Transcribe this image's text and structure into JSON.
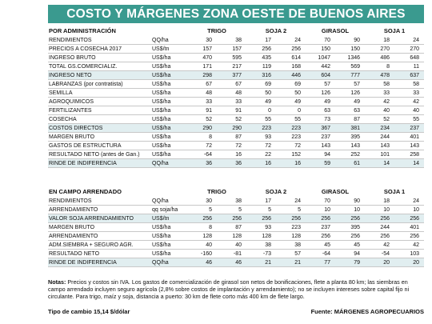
{
  "title": "COSTO Y MÁRGENES ZONA OESTE DE BUENOS AIRES",
  "section1": {
    "heading": "POR ADMINISTRACIÓN",
    "groups": [
      "TRIGO",
      "SOJA 2",
      "GIRASOL",
      "SOJA 1"
    ],
    "rows": [
      {
        "label": "RENDIMIENTOS",
        "unit": "QQ/ha",
        "values": [
          "30",
          "38",
          "17",
          "24",
          "70",
          "90",
          "18",
          "24"
        ]
      },
      {
        "label": "PRECIOS A COSECHA 2017",
        "unit": "US$/tn",
        "values": [
          "157",
          "157",
          "256",
          "256",
          "150",
          "150",
          "270",
          "270"
        ]
      },
      {
        "label": "INGRESO BRUTO",
        "unit": "US$/ha",
        "values": [
          "470",
          "595",
          "435",
          "614",
          "1047",
          "1346",
          "486",
          "648"
        ]
      },
      {
        "label": "TOTAL GS.COMERCIALIZ.",
        "unit": "US$/ha",
        "values": [
          "171",
          "217",
          "119",
          "168",
          "442",
          "569",
          "8",
          "11"
        ]
      },
      {
        "label": "INGRESO NETO",
        "unit": "US$/ha",
        "values": [
          "298",
          "377",
          "316",
          "446",
          "604",
          "777",
          "478",
          "637"
        ]
      },
      {
        "label": "LABRANZAS (por contratista)",
        "unit": "US$/ha",
        "values": [
          "67",
          "67",
          "69",
          "69",
          "57",
          "57",
          "58",
          "58"
        ]
      },
      {
        "label": "SEMILLA",
        "unit": "US$/ha",
        "values": [
          "48",
          "48",
          "50",
          "50",
          "126",
          "126",
          "33",
          "33"
        ]
      },
      {
        "label": "AGROQUIMICOS",
        "unit": "US$/ha",
        "values": [
          "33",
          "33",
          "49",
          "49",
          "49",
          "49",
          "42",
          "42"
        ]
      },
      {
        "label": "FERTILIZANTES",
        "unit": "US$/ha",
        "values": [
          "91",
          "91",
          "0",
          "0",
          "63",
          "63",
          "40",
          "40"
        ]
      },
      {
        "label": "COSECHA",
        "unit": "US$/ha",
        "values": [
          "52",
          "52",
          "55",
          "55",
          "73",
          "87",
          "52",
          "55"
        ]
      },
      {
        "label": "COSTOS DIRECTOS",
        "unit": "US$/ha",
        "values": [
          "290",
          "290",
          "223",
          "223",
          "367",
          "381",
          "234",
          "237"
        ]
      },
      {
        "label": "MARGEN BRUTO",
        "unit": "US$/ha",
        "values": [
          "8",
          "87",
          "93",
          "223",
          "237",
          "395",
          "244",
          "401"
        ]
      },
      {
        "label": "GASTOS DE ESTRUCTURA",
        "unit": "US$/ha",
        "values": [
          "72",
          "72",
          "72",
          "72",
          "143",
          "143",
          "143",
          "143"
        ]
      },
      {
        "label": "RESULTADO NETO (antes de Gan.)",
        "unit": "US$/ha",
        "values": [
          "-64",
          "16",
          "22",
          "152",
          "94",
          "252",
          "101",
          "258"
        ]
      },
      {
        "label": "RINDE DE INDIFERENCIA",
        "unit": "QQ/ha",
        "values": [
          "36",
          "36",
          "16",
          "16",
          "59",
          "61",
          "14",
          "14"
        ]
      }
    ]
  },
  "section2": {
    "heading": "EN CAMPO ARRENDADO",
    "groups": [
      "TRIGO",
      "SOJA 2",
      "GIRASOL",
      "SOJA 1"
    ],
    "rows": [
      {
        "label": "RENDIMIENTOS",
        "unit": "QQ/ha",
        "values": [
          "30",
          "38",
          "17",
          "24",
          "70",
          "90",
          "18",
          "24"
        ]
      },
      {
        "label": "ARRENDAMIENTO",
        "unit": "qq soja/ha",
        "values": [
          "5",
          "5",
          "5",
          "5",
          "10",
          "10",
          "10",
          "10"
        ]
      },
      {
        "label": "VALOR SOJA ARRENDAMIENTO",
        "unit": "US$/tn",
        "values": [
          "256",
          "256",
          "256",
          "256",
          "256",
          "256",
          "256",
          "256"
        ]
      },
      {
        "label": "MARGEN BRUTO",
        "unit": "US$/ha",
        "values": [
          "8",
          "87",
          "93",
          "223",
          "237",
          "395",
          "244",
          "401"
        ]
      },
      {
        "label": "ARRENDAMIENTO",
        "unit": "US$/ha",
        "values": [
          "128",
          "128",
          "128",
          "128",
          "256",
          "256",
          "256",
          "256"
        ]
      },
      {
        "label": "ADM.SIEMBRA + SEGURO AGR.",
        "unit": "US$/ha",
        "values": [
          "40",
          "40",
          "38",
          "38",
          "45",
          "45",
          "42",
          "42"
        ]
      },
      {
        "label": "RESULTADO NETO",
        "unit": "US$/ha",
        "values": [
          "-160",
          "-81",
          "-73",
          "57",
          "-64",
          "94",
          "-54",
          "103"
        ]
      },
      {
        "label": "RINDE DE INDIFERENCIA",
        "unit": "QQ/ha",
        "values": [
          "46",
          "46",
          "21",
          "21",
          "77",
          "79",
          "20",
          "20"
        ]
      }
    ]
  },
  "notes": {
    "label": "Notas:",
    "text": "Precios y costos sin IVA. Los gastos de comercialización de girasol son netos de bonificaciones, flete a planta 80 km; las siembras en campo arrendado incluyen seguro agrícola (2,8% sobre costos de implantación y arrendamiento); no se incluyen intereses sobre capital fijo ni circulante. Para trigo, maíz y soja, distancia a puerto: 30 km de flete corto más 400 km de flete largo."
  },
  "footer": {
    "exchange": "Tipo de cambio 15,14 $/dólar",
    "source": "Fuente: MÁRGENES AGROPECUARIOS"
  }
}
